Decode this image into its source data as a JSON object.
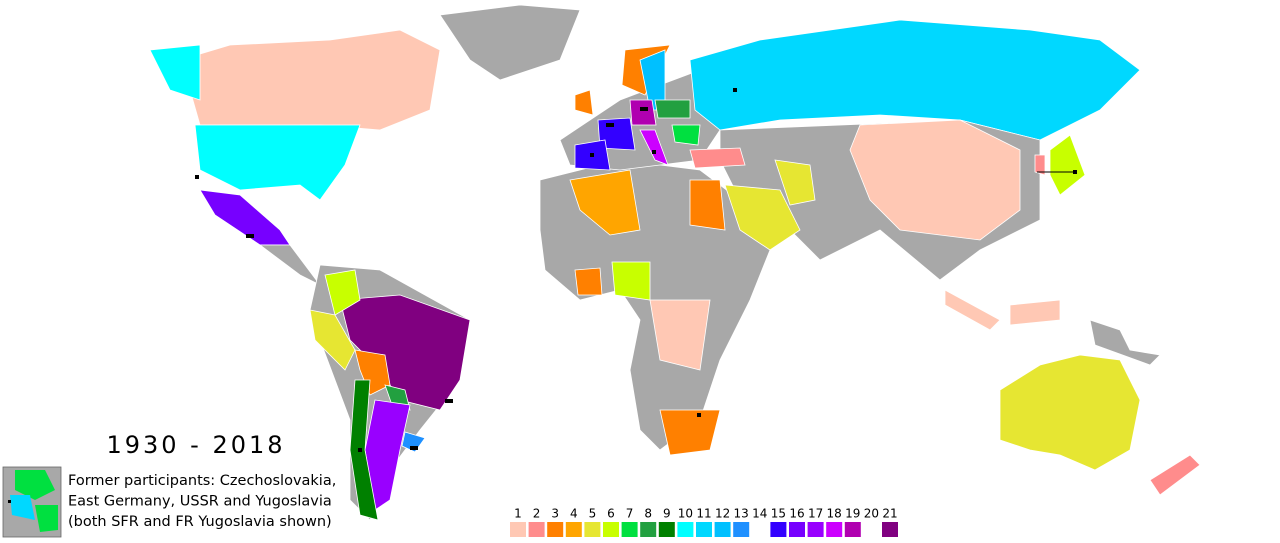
{
  "title": "1930 - 2018",
  "note_lines": [
    "Former participants: Czechoslovakia,",
    "East Germany, USSR and Yugoslavia",
    "(both SFR and FR Yugoslavia shown)"
  ],
  "legend": [
    {
      "label": 1,
      "color": "#ffc8b4"
    },
    {
      "label": 2,
      "color": "#ff8c8c"
    },
    {
      "label": 3,
      "color": "#ff8000"
    },
    {
      "label": 4,
      "color": "#ffa500"
    },
    {
      "label": 5,
      "color": "#e6e632"
    },
    {
      "label": 6,
      "color": "#c8ff00"
    },
    {
      "label": 7,
      "color": "#00e040"
    },
    {
      "label": 8,
      "color": "#22a040"
    },
    {
      "label": 9,
      "color": "#008000"
    },
    {
      "label": 10,
      "color": "#00ffff"
    },
    {
      "label": 11,
      "color": "#00d8ff"
    },
    {
      "label": 12,
      "color": "#00c0ff"
    },
    {
      "label": 13,
      "color": "#1e90ff"
    },
    {
      "label": 14,
      "color": null
    },
    {
      "label": 15,
      "color": "#3300ff"
    },
    {
      "label": 16,
      "color": "#7700ff"
    },
    {
      "label": 17,
      "color": "#9900ff"
    },
    {
      "label": 18,
      "color": "#cc00ff"
    },
    {
      "label": 19,
      "color": "#b000b0"
    },
    {
      "label": 20,
      "color": null
    },
    {
      "label": 21,
      "color": "#800080"
    }
  ]
}
